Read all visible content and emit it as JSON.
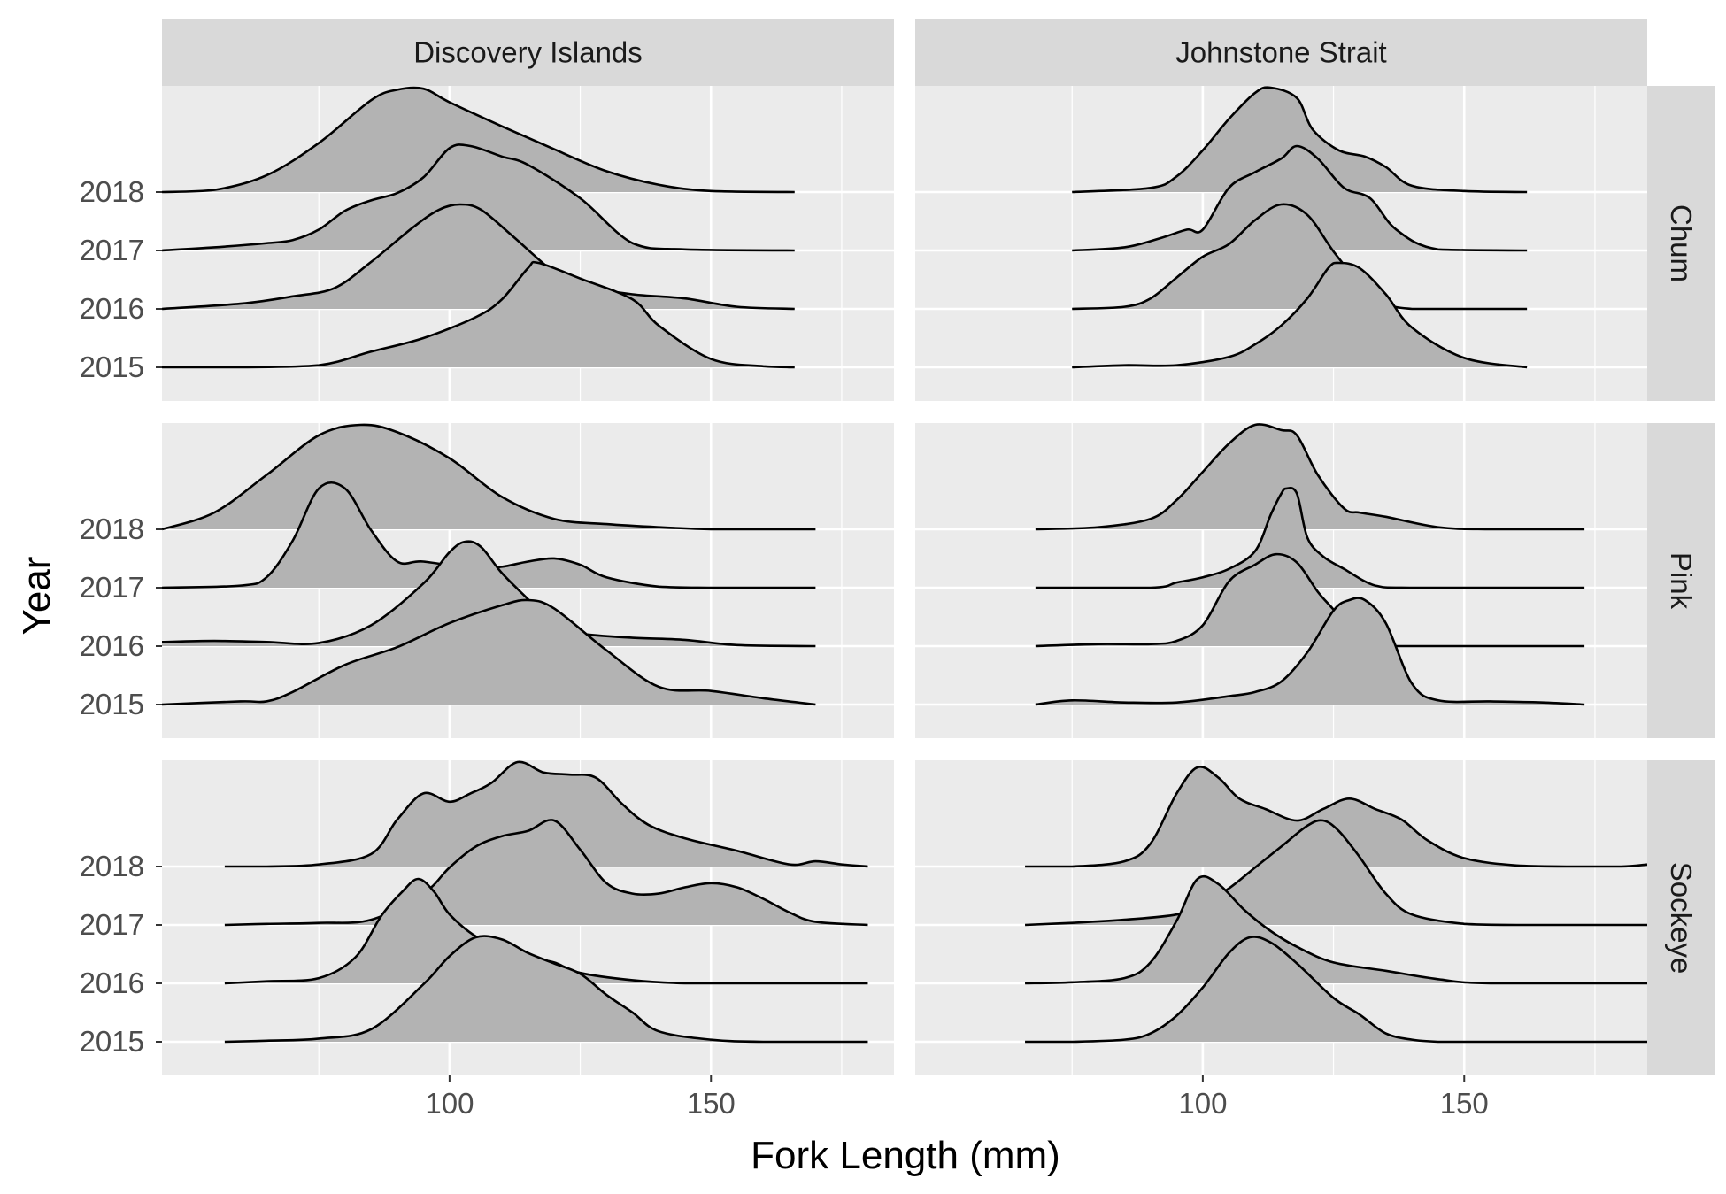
{
  "chart_data": {
    "type": "ridgeline",
    "xlabel": "Fork Length (mm)",
    "ylabel": "Year",
    "x_ticks": [
      100,
      150
    ],
    "xlim": [
      45,
      185
    ],
    "years": [
      "2015",
      "2016",
      "2017",
      "2018"
    ],
    "columns": [
      "Discovery Islands",
      "Johnstone Strait"
    ],
    "rows": [
      "Chum",
      "Pink",
      "Sockeye"
    ],
    "grid": true,
    "colors": {
      "panel_bg": "#EBEBEB",
      "strip_bg": "#D9D9D9",
      "grid": "#FFFFFF",
      "fill": "#B3B3B3",
      "line": "#000000"
    },
    "panels": [
      {
        "row": "Chum",
        "column": "Discovery Islands",
        "series": [
          {
            "year": "2015",
            "x": [
              45,
              60,
              75,
              85,
              95,
              105,
              110,
              115,
              117,
              125,
              135,
              140,
              150,
              160,
              166
            ],
            "density": [
              0,
              0,
              0.02,
              0.15,
              0.28,
              0.48,
              0.65,
              0.95,
              1.0,
              0.85,
              0.65,
              0.4,
              0.08,
              0.01,
              0
            ]
          },
          {
            "year": "2016",
            "x": [
              45,
              60,
              70,
              78,
              85,
              93,
              98,
              102,
              106,
              112,
              120,
              125,
              135,
              145,
              155,
              166
            ],
            "density": [
              0,
              0.05,
              0.12,
              0.2,
              0.45,
              0.78,
              0.95,
              1.0,
              0.95,
              0.7,
              0.35,
              0.22,
              0.14,
              0.1,
              0.02,
              0
            ]
          },
          {
            "year": "2017",
            "x": [
              45,
              55,
              65,
              70,
              75,
              80,
              85,
              90,
              95,
              100,
              104,
              110,
              115,
              125,
              135,
              145,
              166
            ],
            "density": [
              0,
              0.03,
              0.07,
              0.1,
              0.2,
              0.38,
              0.48,
              0.55,
              0.7,
              0.98,
              1.0,
              0.9,
              0.82,
              0.5,
              0.07,
              0.01,
              0
            ]
          },
          {
            "year": "2018",
            "x": [
              45,
              55,
              65,
              75,
              85,
              90,
              95,
              100,
              110,
              120,
              130,
              140,
              150,
              166
            ],
            "density": [
              0,
              0.02,
              0.16,
              0.47,
              0.88,
              0.98,
              0.99,
              0.86,
              0.63,
              0.41,
              0.2,
              0.07,
              0.01,
              0
            ]
          }
        ]
      },
      {
        "row": "Chum",
        "column": "Johnstone Strait",
        "series": [
          {
            "year": "2015",
            "x": [
              75,
              85,
              95,
              105,
              110,
              115,
              120,
              124,
              126,
              130,
              135,
              140,
              150,
              162
            ],
            "density": [
              0,
              0.02,
              0.02,
              0.1,
              0.22,
              0.4,
              0.66,
              0.95,
              1.0,
              0.95,
              0.7,
              0.38,
              0.09,
              0
            ]
          },
          {
            "year": "2016",
            "x": [
              75,
              85,
              90,
              95,
              100,
              105,
              110,
              115,
              120,
              125,
              130,
              135,
              140,
              145,
              162
            ],
            "density": [
              0,
              0.02,
              0.1,
              0.3,
              0.5,
              0.62,
              0.85,
              1.0,
              0.9,
              0.55,
              0.25,
              0.05,
              0,
              0,
              0
            ]
          },
          {
            "year": "2017",
            "x": [
              75,
              85,
              92,
              97,
              100,
              105,
              110,
              115,
              118,
              122,
              127,
              132,
              137,
              145,
              162
            ],
            "density": [
              0,
              0.03,
              0.12,
              0.2,
              0.2,
              0.6,
              0.75,
              0.88,
              1.0,
              0.88,
              0.6,
              0.5,
              0.2,
              0.01,
              0
            ]
          },
          {
            "year": "2018",
            "x": [
              75,
              90,
              95,
              100,
              105,
              110,
              113,
              118,
              121,
              126,
              131,
              135,
              140,
              150,
              162
            ],
            "density": [
              0,
              0.04,
              0.15,
              0.4,
              0.7,
              0.95,
              1.0,
              0.9,
              0.6,
              0.4,
              0.34,
              0.24,
              0.06,
              0.01,
              0
            ]
          }
        ]
      },
      {
        "row": "Pink",
        "column": "Discovery Islands",
        "series": [
          {
            "year": "2015",
            "x": [
              45,
              60,
              65,
              70,
              80,
              90,
              100,
              110,
              115,
              120,
              130,
              140,
              150,
              160,
              170
            ],
            "density": [
              0,
              0.03,
              0.03,
              0.12,
              0.38,
              0.55,
              0.78,
              0.95,
              1.0,
              0.92,
              0.52,
              0.17,
              0.13,
              0.06,
              0
            ]
          },
          {
            "year": "2016",
            "x": [
              45,
              55,
              65,
              75,
              85,
              95,
              100,
              103,
              106,
              110,
              115,
              120,
              125,
              135,
              145,
              155,
              170
            ],
            "density": [
              0.04,
              0.05,
              0.04,
              0.03,
              0.2,
              0.6,
              0.9,
              1.0,
              0.95,
              0.7,
              0.45,
              0.2,
              0.12,
              0.08,
              0.06,
              0.01,
              0
            ]
          },
          {
            "year": "2017",
            "x": [
              45,
              60,
              65,
              70,
              75,
              80,
              85,
              90,
              95,
              105,
              110,
              115,
              120,
              125,
              130,
              140,
              150,
              170
            ],
            "density": [
              0,
              0.02,
              0.1,
              0.45,
              0.95,
              0.95,
              0.55,
              0.25,
              0.25,
              0.18,
              0.2,
              0.25,
              0.28,
              0.22,
              0.1,
              0.01,
              0,
              0
            ]
          },
          {
            "year": "2018",
            "x": [
              45,
              55,
              65,
              75,
              83,
              90,
              100,
              110,
              120,
              130,
              140,
              150,
              160,
              170
            ],
            "density": [
              0,
              0.16,
              0.52,
              0.9,
              1.0,
              0.93,
              0.68,
              0.31,
              0.1,
              0.05,
              0.02,
              0,
              0,
              0
            ]
          }
        ]
      },
      {
        "row": "Pink",
        "column": "Johnstone Strait",
        "series": [
          {
            "year": "2015",
            "x": [
              68,
              75,
              85,
              95,
              105,
              110,
              115,
              120,
              125,
              128,
              131,
              135,
              140,
              145,
              155,
              165,
              173
            ],
            "density": [
              0,
              0.04,
              0.02,
              0.02,
              0.08,
              0.12,
              0.22,
              0.5,
              0.9,
              1.0,
              1.0,
              0.78,
              0.2,
              0.04,
              0.03,
              0.02,
              0
            ]
          },
          {
            "year": "2016",
            "x": [
              68,
              80,
              90,
              95,
              100,
              105,
              110,
              114,
              118,
              122,
              125,
              130,
              135,
              145,
              173
            ],
            "density": [
              0,
              0.02,
              0.02,
              0.05,
              0.2,
              0.62,
              0.78,
              0.88,
              0.8,
              0.52,
              0.35,
              0.06,
              0,
              0,
              0
            ]
          },
          {
            "year": "2017",
            "x": [
              68,
              90,
              95,
              100,
              105,
              110,
              113,
              115,
              116,
              118,
              120,
              123,
              127,
              133,
              140,
              173
            ],
            "density": [
              0,
              0,
              0.05,
              0.1,
              0.18,
              0.35,
              0.7,
              0.9,
              0.95,
              0.9,
              0.48,
              0.3,
              0.18,
              0.02,
              0,
              0
            ]
          },
          {
            "year": "2018",
            "x": [
              68,
              80,
              90,
              95,
              100,
              105,
              110,
              115,
              118,
              122,
              127,
              130,
              135,
              145,
              155,
              173
            ],
            "density": [
              0,
              0.02,
              0.1,
              0.28,
              0.55,
              0.82,
              1.0,
              0.95,
              0.9,
              0.52,
              0.2,
              0.16,
              0.12,
              0.02,
              0,
              0
            ]
          }
        ]
      },
      {
        "row": "Sockeye",
        "column": "Discovery Islands",
        "series": [
          {
            "year": "2015",
            "x": [
              57,
              65,
              75,
              85,
              95,
              100,
              105,
              110,
              115,
              120,
              125,
              130,
              135,
              140,
              150,
              160,
              180
            ],
            "density": [
              0,
              0.01,
              0.03,
              0.12,
              0.55,
              0.82,
              1.0,
              0.98,
              0.85,
              0.75,
              0.65,
              0.45,
              0.28,
              0.1,
              0.02,
              0,
              0
            ]
          },
          {
            "year": "2016",
            "x": [
              57,
              65,
              75,
              82,
              87,
              91,
              94,
              97,
              100,
              105,
              110,
              115,
              120,
              125,
              135,
              145,
              155,
              180
            ],
            "density": [
              0,
              0.02,
              0.05,
              0.25,
              0.65,
              0.88,
              1.0,
              0.88,
              0.66,
              0.45,
              0.35,
              0.25,
              0.2,
              0.1,
              0.03,
              0,
              0,
              0
            ]
          },
          {
            "year": "2017",
            "x": [
              57,
              65,
              75,
              85,
              95,
              100,
              105,
              110,
              115,
              120,
              125,
              130,
              135,
              140,
              145,
              150,
              155,
              160,
              165,
              170,
              180
            ],
            "density": [
              0,
              0.01,
              0.02,
              0.05,
              0.3,
              0.55,
              0.75,
              0.85,
              0.9,
              1.0,
              0.72,
              0.4,
              0.3,
              0.3,
              0.36,
              0.4,
              0.36,
              0.25,
              0.12,
              0.03,
              0
            ]
          },
          {
            "year": "2018",
            "x": [
              57,
              65,
              75,
              85,
              90,
              95,
              100,
              104,
              108,
              113,
              118,
              123,
              128,
              133,
              138,
              145,
              155,
              165,
              170,
              175,
              180
            ],
            "density": [
              0,
              0,
              0.02,
              0.12,
              0.45,
              0.7,
              0.62,
              0.7,
              0.8,
              1.0,
              0.9,
              0.88,
              0.85,
              0.6,
              0.4,
              0.27,
              0.15,
              0.02,
              0.05,
              0.02,
              0
            ]
          }
        ]
      },
      {
        "row": "Sockeye",
        "column": "Johnstone Strait",
        "series": [
          {
            "year": "2015",
            "x": [
              66,
              75,
              85,
              90,
              95,
              100,
              105,
              109,
              113,
              118,
              125,
              130,
              135,
              140,
              145,
              150,
              185
            ],
            "density": [
              0,
              0,
              0.02,
              0.08,
              0.25,
              0.52,
              0.85,
              1.0,
              0.95,
              0.75,
              0.42,
              0.26,
              0.08,
              0.02,
              0,
              0,
              0
            ]
          },
          {
            "year": "2016",
            "x": [
              66,
              75,
              85,
              90,
              95,
              99,
              103,
              108,
              113,
              118,
              125,
              135,
              145,
              155,
              185
            ],
            "density": [
              0,
              0.01,
              0.05,
              0.2,
              0.6,
              1.0,
              0.95,
              0.7,
              0.5,
              0.35,
              0.2,
              0.12,
              0.04,
              0,
              0
            ]
          },
          {
            "year": "2017",
            "x": [
              66,
              75,
              85,
              95,
              100,
              105,
              110,
              115,
              120,
              123,
              126,
              130,
              135,
              140,
              150,
              160,
              185
            ],
            "density": [
              0,
              0.02,
              0.05,
              0.1,
              0.2,
              0.35,
              0.55,
              0.75,
              0.95,
              1.0,
              0.9,
              0.65,
              0.3,
              0.1,
              0.01,
              0,
              0
            ]
          },
          {
            "year": "2018",
            "x": [
              66,
              75,
              85,
              90,
              95,
              99,
              103,
              107,
              112,
              118,
              123,
              128,
              133,
              138,
              143,
              150,
              160,
              170,
              180,
              185
            ],
            "density": [
              0,
              0,
              0.05,
              0.22,
              0.7,
              0.95,
              0.85,
              0.65,
              0.55,
              0.44,
              0.55,
              0.65,
              0.55,
              0.45,
              0.25,
              0.08,
              0.01,
              0,
              0,
              0.02
            ]
          }
        ]
      }
    ]
  }
}
